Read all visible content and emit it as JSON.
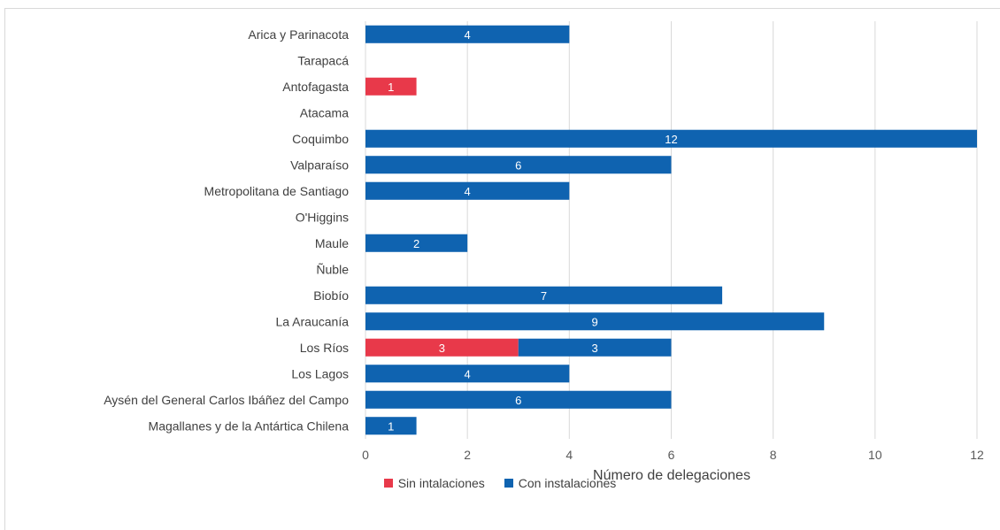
{
  "chart_data": {
    "type": "bar",
    "orientation": "horizontal",
    "stacked": true,
    "title": "",
    "xlabel": "Número de delegaciones",
    "ylabel": "",
    "xlim": [
      0,
      12
    ],
    "xticks": [
      "0",
      "2",
      "4",
      "6",
      "8",
      "10",
      "12"
    ],
    "grid": true,
    "legend_position": "bottom",
    "categories": [
      "Arica y Parinacota",
      "Tarapacá",
      "Antofagasta",
      "Atacama",
      "Coquimbo",
      "Valparaíso",
      "Metropolitana de Santiago",
      "O'Higgins",
      "Maule",
      "Ñuble",
      "Biobío",
      "La Araucanía",
      "Los Ríos",
      "Los Lagos",
      "Aysén del General Carlos Ibáñez del Campo",
      "Magallanes y de la Antártica Chilena"
    ],
    "series": [
      {
        "name": "Sin intalaciones",
        "color": "#e8394a",
        "values": [
          0,
          0,
          1,
          0,
          0,
          0,
          0,
          0,
          0,
          0,
          0,
          0,
          3,
          0,
          0,
          0
        ]
      },
      {
        "name": "Con instalaciones",
        "color": "#0f63b0",
        "values": [
          4,
          0,
          0,
          0,
          12,
          6,
          4,
          0,
          2,
          0,
          7,
          9,
          3,
          4,
          6,
          1
        ]
      }
    ]
  }
}
